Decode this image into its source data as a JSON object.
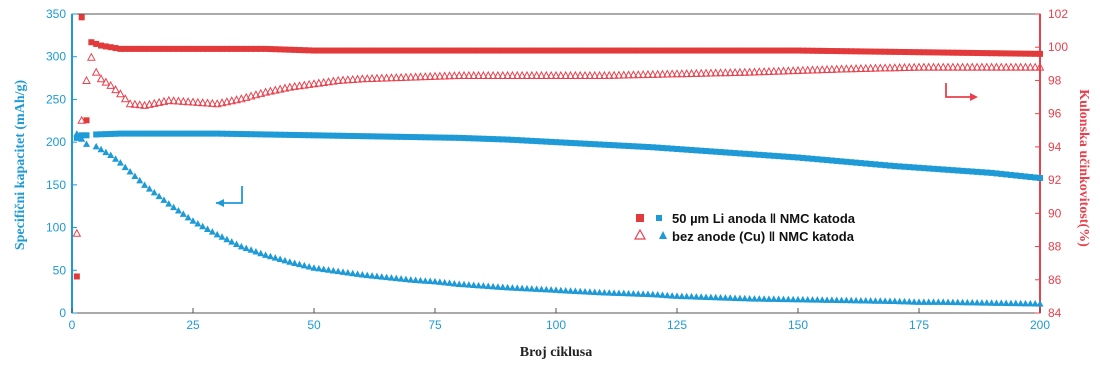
{
  "chart_data": {
    "type": "scatter",
    "xlabel": "Broj ciklusa",
    "ylabel_left": "Specifični kapacitet (mAh/g)",
    "ylabel_right": "Kulonska učinkovitost(%)",
    "xlim": [
      0,
      200
    ],
    "ylim_left": [
      0,
      350
    ],
    "ylim_right": [
      84,
      102
    ],
    "x_ticks": [
      0,
      25,
      50,
      75,
      100,
      125,
      150,
      175,
      200
    ],
    "y_left_ticks": [
      0,
      50,
      100,
      150,
      200,
      250,
      300,
      350
    ],
    "y_right_ticks": [
      84,
      86,
      88,
      90,
      92,
      94,
      96,
      98,
      100,
      102
    ],
    "legend_position": "center-right",
    "colors": {
      "blue": "#1e9ad6",
      "red": "#e8414d",
      "red_fill": "#e23a3a"
    },
    "series": [
      {
        "name": "50 µm Li anoda ‖ NMC katoda",
        "axis": "left",
        "marker": "square-filled",
        "color": "#1e9ad6",
        "points": [
          [
            1,
            205
          ],
          [
            2,
            208
          ],
          [
            3,
            208
          ],
          [
            5,
            209
          ],
          [
            10,
            210
          ],
          [
            20,
            210
          ],
          [
            30,
            210
          ],
          [
            40,
            209
          ],
          [
            50,
            208
          ],
          [
            60,
            207
          ],
          [
            70,
            206
          ],
          [
            80,
            205
          ],
          [
            90,
            203
          ],
          [
            100,
            200
          ],
          [
            110,
            197
          ],
          [
            120,
            194
          ],
          [
            130,
            190
          ],
          [
            140,
            186
          ],
          [
            150,
            182
          ],
          [
            160,
            177
          ],
          [
            170,
            172
          ],
          [
            180,
            168
          ],
          [
            190,
            164
          ],
          [
            200,
            158
          ]
        ]
      },
      {
        "name": "bez anode (Cu) ‖ NMC katoda",
        "axis": "left",
        "marker": "triangle-filled",
        "color": "#1e9ad6",
        "points": [
          [
            1,
            210
          ],
          [
            2,
            204
          ],
          [
            3,
            198
          ],
          [
            5,
            195
          ],
          [
            8,
            185
          ],
          [
            10,
            176
          ],
          [
            15,
            150
          ],
          [
            20,
            128
          ],
          [
            25,
            108
          ],
          [
            30,
            92
          ],
          [
            35,
            78
          ],
          [
            40,
            68
          ],
          [
            45,
            60
          ],
          [
            50,
            53
          ],
          [
            60,
            45
          ],
          [
            70,
            39
          ],
          [
            75,
            37
          ],
          [
            80,
            34
          ],
          [
            90,
            30
          ],
          [
            100,
            27
          ],
          [
            110,
            24
          ],
          [
            120,
            22
          ],
          [
            125,
            20
          ],
          [
            130,
            19
          ],
          [
            140,
            17
          ],
          [
            150,
            16
          ],
          [
            160,
            15
          ],
          [
            170,
            14
          ],
          [
            175,
            13
          ],
          [
            180,
            13
          ],
          [
            190,
            12
          ],
          [
            200,
            11
          ]
        ]
      },
      {
        "name": "50 µm Li anoda ‖ NMC katoda (CE)",
        "axis": "right",
        "marker": "square-filled",
        "color": "#e23a3a",
        "points": [
          [
            1,
            86.2
          ],
          [
            2,
            101.8
          ],
          [
            3,
            95.6
          ],
          [
            4,
            100.3
          ],
          [
            5,
            100.2
          ],
          [
            6,
            100.1
          ],
          [
            8,
            100.0
          ],
          [
            10,
            99.9
          ],
          [
            20,
            99.9
          ],
          [
            30,
            99.9
          ],
          [
            40,
            99.9
          ],
          [
            50,
            99.8
          ],
          [
            60,
            99.8
          ],
          [
            75,
            99.8
          ],
          [
            100,
            99.8
          ],
          [
            125,
            99.8
          ],
          [
            150,
            99.8
          ],
          [
            175,
            99.7
          ],
          [
            200,
            99.6
          ]
        ]
      },
      {
        "name": "bez anode (Cu) ‖ NMC katoda (CE)",
        "axis": "right",
        "marker": "triangle-open",
        "color": "#e8414d",
        "points": [
          [
            1,
            88.8
          ],
          [
            2,
            95.6
          ],
          [
            3,
            98.0
          ],
          [
            4,
            99.4
          ],
          [
            5,
            98.5
          ],
          [
            6,
            98.1
          ],
          [
            8,
            97.7
          ],
          [
            10,
            97.2
          ],
          [
            12,
            96.6
          ],
          [
            15,
            96.5
          ],
          [
            20,
            96.8
          ],
          [
            25,
            96.7
          ],
          [
            30,
            96.6
          ],
          [
            35,
            96.9
          ],
          [
            40,
            97.3
          ],
          [
            45,
            97.6
          ],
          [
            50,
            97.8
          ],
          [
            55,
            98.0
          ],
          [
            60,
            98.1
          ],
          [
            70,
            98.2
          ],
          [
            80,
            98.3
          ],
          [
            90,
            98.3
          ],
          [
            100,
            98.3
          ],
          [
            110,
            98.3
          ],
          [
            125,
            98.4
          ],
          [
            140,
            98.5
          ],
          [
            150,
            98.6
          ],
          [
            160,
            98.7
          ],
          [
            175,
            98.8
          ],
          [
            190,
            98.8
          ],
          [
            200,
            98.8
          ]
        ]
      }
    ]
  }
}
